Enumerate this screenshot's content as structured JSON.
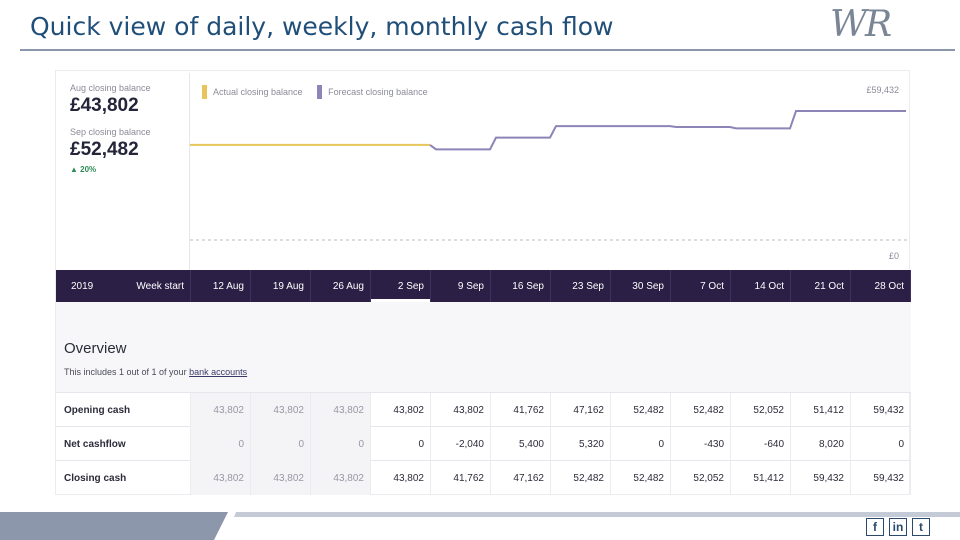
{
  "slide": {
    "title": "Quick view of daily, weekly, monthly cash flow",
    "logo_text": "WR"
  },
  "kpis": [
    {
      "label": "Aug closing balance",
      "value": "£43,802"
    },
    {
      "label": "Sep closing balance",
      "value": "£52,482",
      "change": "▲ 20%"
    }
  ],
  "chart": {
    "legend": [
      {
        "label": "Actual closing balance",
        "color": "#e8c45a"
      },
      {
        "label": "Forecast closing balance",
        "color": "#8e84b8"
      }
    ],
    "max_label": "£59,432",
    "min_label": "£0"
  },
  "chart_data": {
    "type": "line",
    "ylim": [
      0,
      59432
    ],
    "series": [
      {
        "name": "Actual closing balance",
        "color": "#e8c45a",
        "x": [
          "12 Aug",
          "19 Aug",
          "26 Aug",
          "2 Sep"
        ],
        "values": [
          43802,
          43802,
          43802,
          43802
        ]
      },
      {
        "name": "Forecast closing balance",
        "color": "#8e84b8",
        "x": [
          "2 Sep",
          "9 Sep",
          "16 Sep",
          "23 Sep",
          "30 Sep",
          "7 Oct",
          "14 Oct",
          "21 Oct",
          "28 Oct"
        ],
        "values": [
          43802,
          41762,
          47162,
          52482,
          52482,
          52052,
          51412,
          59432,
          59432
        ]
      }
    ]
  },
  "weeks": {
    "year": "2019",
    "week_start_label": "Week start",
    "dates": [
      "12 Aug",
      "19 Aug",
      "26 Aug",
      "2 Sep",
      "9 Sep",
      "16 Sep",
      "23 Sep",
      "30 Sep",
      "7 Oct",
      "14 Oct",
      "21 Oct",
      "28 Oct"
    ],
    "selected_index": 3
  },
  "overview": {
    "title": "Overview",
    "subtitle_prefix": "This includes 1 out of 1 of your ",
    "subtitle_link": "bank accounts"
  },
  "table": {
    "past_count": 3,
    "rows": [
      {
        "label": "Opening cash",
        "values": [
          "43,802",
          "43,802",
          "43,802",
          "43,802",
          "43,802",
          "41,762",
          "47,162",
          "52,482",
          "52,482",
          "52,052",
          "51,412",
          "59,432"
        ]
      },
      {
        "label": "Net cashflow",
        "values": [
          "0",
          "0",
          "0",
          "0",
          "-2,040",
          "5,400",
          "5,320",
          "0",
          "-430",
          "-640",
          "8,020",
          "0"
        ]
      },
      {
        "label": "Closing cash",
        "values": [
          "43,802",
          "43,802",
          "43,802",
          "43,802",
          "41,762",
          "47,162",
          "52,482",
          "52,482",
          "52,052",
          "51,412",
          "59,432",
          "59,432"
        ]
      }
    ]
  },
  "social": [
    {
      "icon": "facebook-icon",
      "glyph": "f"
    },
    {
      "icon": "linkedin-icon",
      "glyph": "in"
    },
    {
      "icon": "twitter-icon",
      "glyph": "t"
    }
  ]
}
